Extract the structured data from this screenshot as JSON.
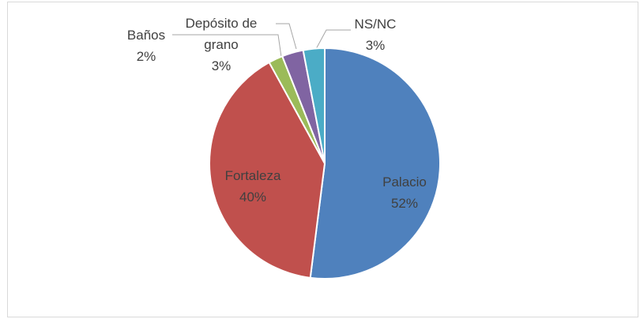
{
  "chart_data": {
    "type": "pie",
    "categories": [
      "Palacio",
      "Fortaleza",
      "Baños",
      "Depósito de grano",
      "NS/NC"
    ],
    "values": [
      52,
      40,
      2,
      3,
      3
    ],
    "value_labels": [
      "52%",
      "40%",
      "2%",
      "3%",
      "3%"
    ],
    "colors": [
      "#4f81bd",
      "#c0504d",
      "#9bbb59",
      "#8064a2",
      "#4bacc6"
    ]
  }
}
